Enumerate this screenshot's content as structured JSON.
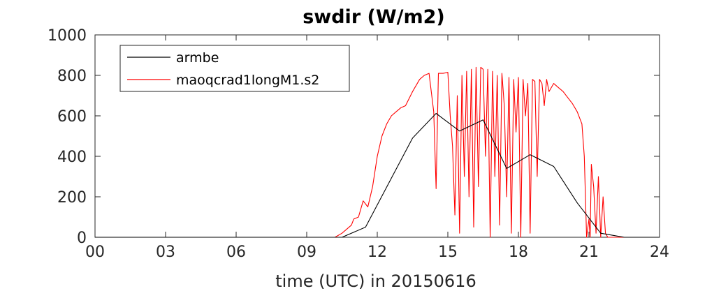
{
  "chart_data": {
    "type": "line",
    "title": "swdir  (W/m2)",
    "xlabel": "time (UTC) in 20150616",
    "ylabel": "",
    "xlim": [
      0,
      24
    ],
    "ylim": [
      0,
      1000
    ],
    "xticks": [
      0,
      3,
      6,
      9,
      12,
      15,
      18,
      21,
      24
    ],
    "xtick_labels": [
      "00",
      "03",
      "06",
      "09",
      "12",
      "15",
      "18",
      "21",
      "24"
    ],
    "yticks": [
      0,
      200,
      400,
      600,
      800,
      1000
    ],
    "ytick_labels": [
      "0",
      "200",
      "400",
      "600",
      "800",
      "1000"
    ],
    "grid": false,
    "legend_position": "top-left",
    "series": [
      {
        "name": "armbe",
        "color": "#000000",
        "x": [
          0,
          10.5,
          11.5,
          12.5,
          13.5,
          14.5,
          15.5,
          16.5,
          17.5,
          18.5,
          19.5,
          20.5,
          21.5,
          22.5,
          23.5,
          24
        ],
        "y": [
          0,
          0,
          50,
          270,
          490,
          612,
          525,
          580,
          340,
          408,
          350,
          170,
          20,
          0,
          0,
          0
        ]
      },
      {
        "name": "maoqcrad1longM1.s2",
        "color": "#ff0000",
        "x": [
          0,
          10.2,
          10.5,
          10.7,
          10.9,
          11.0,
          11.2,
          11.4,
          11.6,
          11.8,
          12.0,
          12.2,
          12.4,
          12.6,
          12.8,
          13.0,
          13.2,
          13.5,
          13.8,
          14.0,
          14.2,
          14.4,
          14.5,
          14.6,
          14.8,
          15.0,
          15.1,
          15.2,
          15.3,
          15.4,
          15.5,
          15.6,
          15.7,
          15.8,
          15.9,
          16.0,
          16.1,
          16.2,
          16.3,
          16.4,
          16.5,
          16.6,
          16.7,
          16.8,
          16.9,
          17.0,
          17.1,
          17.2,
          17.3,
          17.4,
          17.5,
          17.6,
          17.7,
          17.8,
          17.9,
          18.0,
          18.1,
          18.2,
          18.3,
          18.4,
          18.5,
          18.6,
          18.7,
          18.8,
          18.9,
          19.0,
          19.1,
          19.2,
          19.3,
          19.5,
          19.7,
          19.9,
          20.1,
          20.3,
          20.5,
          20.7,
          20.8,
          20.9,
          21.0,
          21.05,
          21.1,
          21.2,
          21.3,
          21.4,
          21.5,
          21.6,
          21.7,
          21.8,
          22.0,
          22.5,
          23.0,
          24.0
        ],
        "y": [
          0,
          0,
          20,
          40,
          60,
          90,
          100,
          180,
          150,
          250,
          400,
          500,
          560,
          600,
          620,
          640,
          650,
          720,
          780,
          800,
          810,
          620,
          240,
          810,
          810,
          815,
          600,
          450,
          110,
          700,
          20,
          800,
          300,
          820,
          200,
          830,
          50,
          840,
          250,
          840,
          830,
          400,
          830,
          0,
          820,
          300,
          800,
          60,
          810,
          650,
          200,
          790,
          20,
          780,
          520,
          790,
          0,
          780,
          600,
          760,
          20,
          780,
          770,
          300,
          780,
          760,
          650,
          780,
          720,
          760,
          740,
          720,
          690,
          660,
          620,
          560,
          400,
          0,
          90,
          0,
          360,
          250,
          20,
          300,
          0,
          200,
          20,
          0,
          0,
          0,
          0,
          0
        ]
      }
    ]
  }
}
